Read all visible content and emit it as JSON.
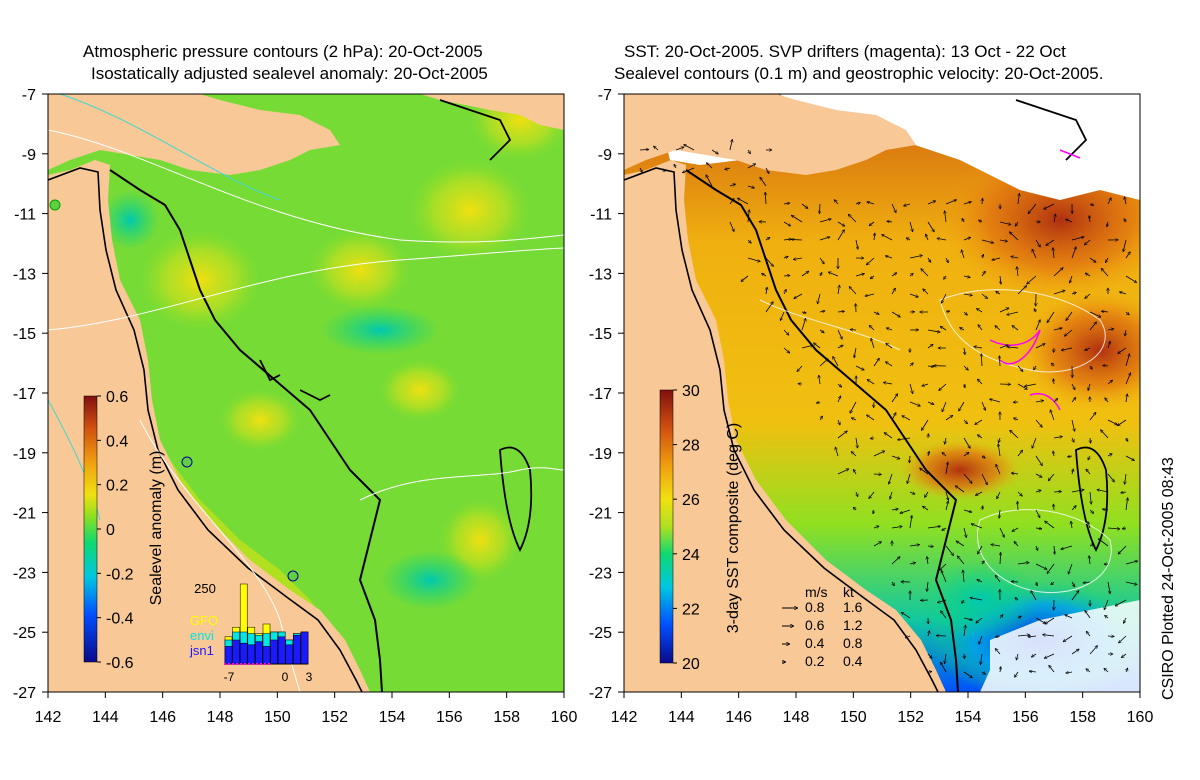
{
  "left_panel": {
    "title_line1": "Atmospheric pressure contours (2 hPa): 20-Oct-2005",
    "title_line2": "Isostatically adjusted sealevel anomaly: 20-Oct-2005",
    "y_ticks": [
      "-7",
      "-9",
      "-11",
      "-13",
      "-15",
      "-17",
      "-19",
      "-21",
      "-23",
      "-25",
      "-27"
    ],
    "x_ticks": [
      "142",
      "144",
      "146",
      "148",
      "150",
      "152",
      "154",
      "156",
      "158",
      "160"
    ],
    "colorbar": {
      "label": "Sealevel anomaly (m)",
      "ticks": [
        "0.6",
        "0.4",
        "0.2",
        "0",
        "-0.2",
        "-0.4",
        "-0.6"
      ]
    },
    "histogram": {
      "ymax_label": "250",
      "x_labels": [
        "-7",
        "0",
        "3"
      ],
      "legend": [
        {
          "name": "GFO",
          "color": "#ffff00"
        },
        {
          "name": "envi",
          "color": "#00e5e5"
        },
        {
          "name": "jsn1",
          "color": "#1a1aff"
        }
      ],
      "bars": [
        {
          "day": -7,
          "jsn1": 0.22,
          "envi": 0.3,
          "gfo": 0.34
        },
        {
          "day": -6,
          "jsn1": 0.3,
          "envi": 0.4,
          "gfo": 0.46
        },
        {
          "day": -5,
          "jsn1": 0.26,
          "envi": 0.4,
          "gfo": 1.0
        },
        {
          "day": -4,
          "jsn1": 0.24,
          "envi": 0.38,
          "gfo": 0.46
        },
        {
          "day": -3,
          "jsn1": 0.28,
          "envi": 0.36,
          "gfo": 0.38
        },
        {
          "day": -2,
          "jsn1": 0.22,
          "envi": 0.38,
          "gfo": 0.5
        },
        {
          "day": -1,
          "jsn1": 0.3,
          "envi": 0.4,
          "gfo": 0.4
        },
        {
          "day": 0,
          "jsn1": 0.34,
          "envi": 0.4,
          "gfo": 0.4
        },
        {
          "day": 1,
          "jsn1": 0.24,
          "envi": 0.3,
          "gfo": 0.3
        },
        {
          "day": 2,
          "jsn1": 0.36,
          "envi": 0.38,
          "gfo": 0.38
        },
        {
          "day": 3,
          "jsn1": 0.4,
          "envi": 0.4,
          "gfo": 0.4
        }
      ]
    }
  },
  "right_panel": {
    "title_line1": "SST: 20-Oct-2005. SVP drifters (magenta): 13 Oct - 22 Oct",
    "title_line2": "Sealevel contours (0.1 m) and geostrophic velocity: 20-Oct-2005.",
    "y_ticks": [
      "-7",
      "-9",
      "-11",
      "-13",
      "-15",
      "-17",
      "-19",
      "-21",
      "-23",
      "-25",
      "-27"
    ],
    "x_ticks": [
      "142",
      "144",
      "146",
      "148",
      "150",
      "152",
      "154",
      "156",
      "158",
      "160"
    ],
    "colorbar": {
      "label": "3-day SST composite (deg C)",
      "ticks": [
        "30",
        "28",
        "26",
        "24",
        "22",
        "20"
      ]
    },
    "velocity_legend": {
      "header_ms": "m/s",
      "header_kt": "kt",
      "rows": [
        {
          "ms": "0.8",
          "kt": "1.6"
        },
        {
          "ms": "0.6",
          "kt": "1.2"
        },
        {
          "ms": "0.4",
          "kt": "0.8"
        },
        {
          "ms": "0.2",
          "kt": "0.4"
        }
      ]
    }
  },
  "plotted_label": "CSIRO Plotted 24-Oct-2005 08:43",
  "colors": {
    "land": "#f8c896",
    "sla_scale": [
      "#0a0a8a",
      "#0050ff",
      "#00c8e0",
      "#10d870",
      "#90e020",
      "#f0e010",
      "#f0a010",
      "#d05010",
      "#801010"
    ],
    "sst_scale": [
      "#0a0a8a",
      "#0050ff",
      "#00c8e0",
      "#10d870",
      "#b0e020",
      "#f0e010",
      "#f0a010",
      "#d05010",
      "#801010"
    ]
  }
}
